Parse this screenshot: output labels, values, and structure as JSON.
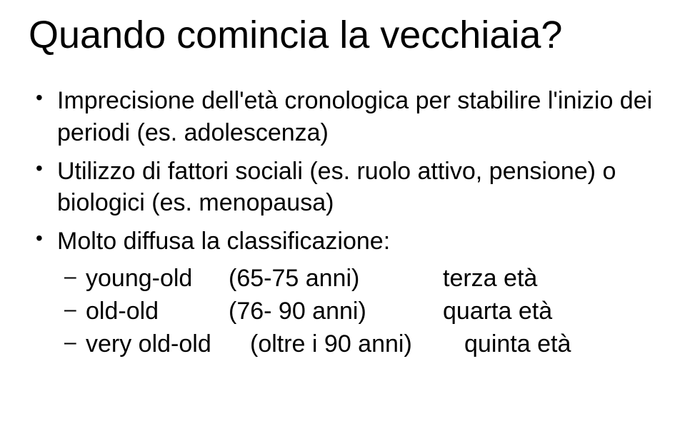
{
  "title": "Quando comincia la vecchiaia?",
  "bullets": [
    {
      "text": "Imprecisione dell'età cronologica per stabilire l'inizio dei periodi (es. adolescenza)"
    },
    {
      "text": "Utilizzo di fattori sociali (es. ruolo attivo, pensione) o biologici (es. menopausa)"
    },
    {
      "text": "Molto diffusa la classificazione:",
      "sub": [
        {
          "label": "young-old",
          "range": "(65-75 anni)",
          "era": "terza età"
        },
        {
          "label": "old-old",
          "range": "(76- 90 anni)",
          "era": "quarta età"
        },
        {
          "label": "very old-old",
          "range": "(oltre i 90 anni)",
          "era": "quinta età"
        }
      ]
    }
  ],
  "style": {
    "background_color": "#ffffff",
    "text_color": "#000000",
    "font_family": "Comic Sans MS, cursive",
    "title_fontsize": 54,
    "body_fontsize": 34
  }
}
